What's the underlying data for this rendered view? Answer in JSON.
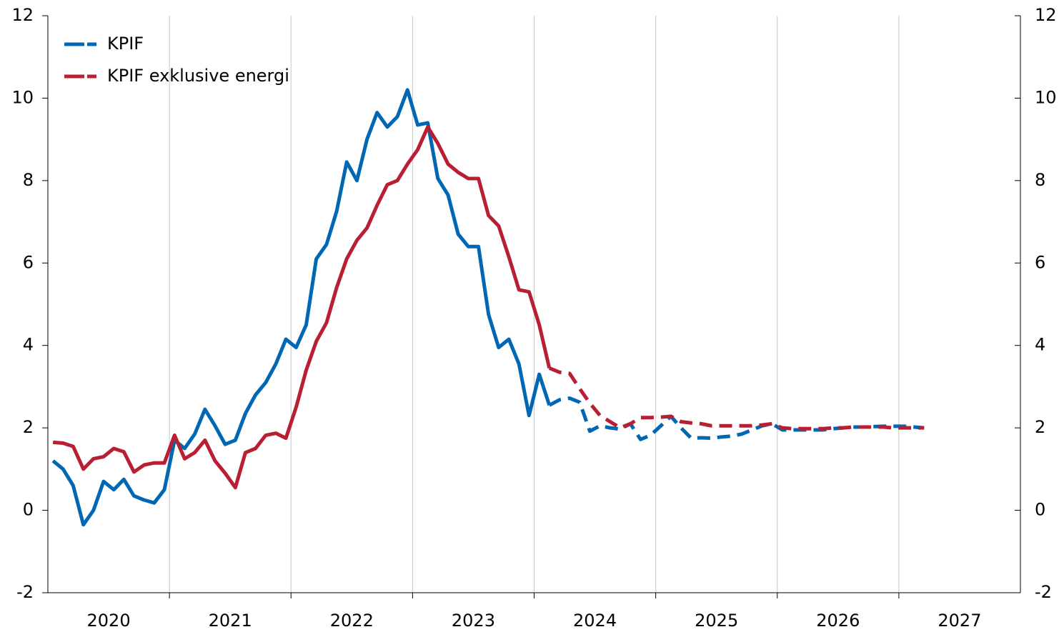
{
  "chart_data": {
    "type": "line",
    "categories": [
      "2020",
      "2021",
      "2022",
      "2023",
      "2024",
      "2025",
      "2026",
      "2027"
    ],
    "x": [
      2020.042,
      2020.125,
      2020.208,
      2020.292,
      2020.375,
      2020.458,
      2020.542,
      2020.625,
      2020.708,
      2020.792,
      2020.875,
      2020.958,
      2021.042,
      2021.125,
      2021.208,
      2021.292,
      2021.375,
      2021.458,
      2021.542,
      2021.625,
      2021.708,
      2021.792,
      2021.875,
      2021.958,
      2022.042,
      2022.125,
      2022.208,
      2022.292,
      2022.375,
      2022.458,
      2022.542,
      2022.625,
      2022.708,
      2022.792,
      2022.875,
      2022.958,
      2023.042,
      2023.125,
      2023.208,
      2023.292,
      2023.375,
      2023.458,
      2023.542,
      2023.625,
      2023.708,
      2023.792,
      2023.875,
      2023.958,
      2024.042,
      2024.125,
      2024.208,
      2024.292,
      2024.375,
      2024.458,
      2024.542,
      2024.625,
      2024.708,
      2024.792,
      2024.875,
      2024.958,
      2025.042,
      2025.125,
      2025.208,
      2025.292,
      2025.375,
      2025.458,
      2025.542,
      2025.625,
      2025.708,
      2025.792,
      2025.875,
      2025.958,
      2026.042,
      2026.125,
      2026.208,
      2026.292,
      2026.375,
      2026.458,
      2026.542,
      2026.625,
      2026.708,
      2026.792,
      2026.875,
      2026.958,
      2027.042,
      2027.125,
      2027.208
    ],
    "series": [
      {
        "name": "KPIF",
        "color": "#0067b4",
        "values": [
          1.2,
          1.0,
          0.6,
          -0.35,
          0.0,
          0.7,
          0.5,
          0.75,
          0.35,
          0.25,
          0.18,
          0.5,
          1.7,
          1.5,
          1.85,
          2.45,
          2.05,
          1.6,
          1.7,
          2.35,
          2.8,
          3.1,
          3.55,
          4.15,
          3.95,
          4.5,
          6.1,
          6.45,
          7.25,
          8.45,
          8.0,
          9.0,
          9.65,
          9.3,
          9.55,
          10.2,
          9.35,
          9.4,
          8.05,
          7.65,
          6.7,
          6.4,
          6.4,
          4.75,
          3.95,
          4.15,
          3.55,
          2.3,
          3.3,
          2.55,
          null,
          null,
          null,
          null,
          null,
          null,
          null,
          null,
          null,
          null,
          null,
          null,
          null,
          null,
          null,
          null,
          null,
          null,
          null,
          null,
          null,
          null,
          null,
          null,
          null,
          null,
          null,
          null,
          null,
          null,
          null,
          null,
          null,
          null,
          null,
          null,
          null
        ],
        "forecast": [
          null,
          null,
          null,
          null,
          null,
          null,
          null,
          null,
          null,
          null,
          null,
          null,
          null,
          null,
          null,
          null,
          null,
          null,
          null,
          null,
          null,
          null,
          null,
          null,
          null,
          null,
          null,
          null,
          null,
          null,
          null,
          null,
          null,
          null,
          null,
          null,
          null,
          null,
          null,
          null,
          null,
          null,
          null,
          null,
          null,
          null,
          null,
          null,
          null,
          2.55,
          2.68,
          2.72,
          2.62,
          1.92,
          2.05,
          2.0,
          1.97,
          2.1,
          1.72,
          1.82,
          2.05,
          2.28,
          2.0,
          1.75,
          1.76,
          1.75,
          1.78,
          1.8,
          1.85,
          1.95,
          2.05,
          2.1,
          1.95,
          1.95,
          1.95,
          1.95,
          1.95,
          1.98,
          2.0,
          2.02,
          2.02,
          2.03,
          2.04,
          2.04,
          2.04,
          2.02,
          2.0
        ]
      },
      {
        "name": "KPIF exklusive energi",
        "color": "#b81f32",
        "values": [
          1.65,
          1.63,
          1.55,
          1.0,
          1.25,
          1.3,
          1.5,
          1.42,
          0.93,
          1.1,
          1.15,
          1.15,
          1.82,
          1.25,
          1.4,
          1.7,
          1.2,
          0.9,
          0.55,
          1.4,
          1.5,
          1.82,
          1.87,
          1.75,
          2.5,
          3.4,
          4.1,
          4.55,
          5.4,
          6.1,
          6.55,
          6.85,
          7.4,
          7.9,
          8.0,
          8.4,
          8.75,
          9.3,
          8.9,
          8.4,
          8.2,
          8.05,
          8.05,
          7.15,
          6.9,
          6.15,
          5.35,
          5.3,
          4.5,
          3.45,
          null,
          null,
          null,
          null,
          null,
          null,
          null,
          null,
          null,
          null,
          null,
          null,
          null,
          null,
          null,
          null,
          null,
          null,
          null,
          null,
          null,
          null,
          null,
          null,
          null,
          null,
          null,
          null,
          null,
          null,
          null,
          null,
          null,
          null,
          null,
          null,
          null
        ],
        "forecast": [
          null,
          null,
          null,
          null,
          null,
          null,
          null,
          null,
          null,
          null,
          null,
          null,
          null,
          null,
          null,
          null,
          null,
          null,
          null,
          null,
          null,
          null,
          null,
          null,
          null,
          null,
          null,
          null,
          null,
          null,
          null,
          null,
          null,
          null,
          null,
          null,
          null,
          null,
          null,
          null,
          null,
          null,
          null,
          null,
          null,
          null,
          null,
          null,
          null,
          3.45,
          3.35,
          3.32,
          2.95,
          2.6,
          2.3,
          2.15,
          2.0,
          2.1,
          2.25,
          2.25,
          2.26,
          2.28,
          2.15,
          2.12,
          2.1,
          2.05,
          2.05,
          2.05,
          2.05,
          2.05,
          2.07,
          2.1,
          2.0,
          1.98,
          1.98,
          1.98,
          1.98,
          2.0,
          2.0,
          2.02,
          2.02,
          2.02,
          2.02,
          2.0,
          2.0,
          2.0,
          2.0
        ]
      }
    ],
    "xlim": [
      2020,
      2028
    ],
    "xticks": [
      2021,
      2022,
      2023,
      2024,
      2025,
      2026,
      2027
    ],
    "ylim": [
      -2,
      12
    ],
    "yticks": [
      -2,
      0,
      2,
      4,
      6,
      8,
      10,
      12
    ],
    "y2lim": [
      -2,
      12
    ],
    "y2ticks": [
      -2,
      0,
      2,
      4,
      6,
      8,
      10,
      12
    ],
    "grid": "x",
    "legend": "upper left"
  }
}
